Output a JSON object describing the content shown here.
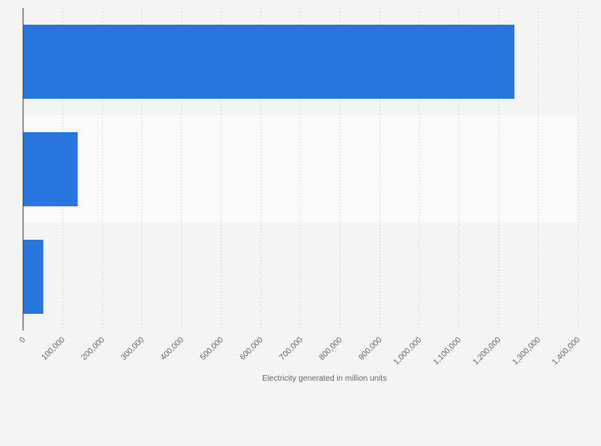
{
  "chart_data": {
    "type": "bar",
    "orientation": "horizontal",
    "categories": [
      "",
      "",
      ""
    ],
    "values": [
      1240000,
      138000,
      51000
    ],
    "title": "",
    "xlabel": "Electricity generated in million units",
    "ylabel": "",
    "xlim": [
      0,
      1400000
    ],
    "xticks": [
      0,
      100000,
      200000,
      300000,
      400000,
      500000,
      600000,
      700000,
      800000,
      900000,
      1000000,
      1100000,
      1200000,
      1300000,
      1400000
    ],
    "xtick_labels": [
      "0",
      "100,000",
      "200,000",
      "300,000",
      "400,000",
      "500,000",
      "600,000",
      "700,000",
      "800,000",
      "900,000",
      "1,000,000",
      "1,100,000",
      "1,200,000",
      "1,300,000",
      "1,400,000"
    ],
    "grid": true,
    "legend": "none",
    "colors": {
      "bar": "#2876dd",
      "band_alt": "#fafafa",
      "band": "#f4f4f4",
      "grid": "#dddddd",
      "axis": "#333333",
      "text": "#666666"
    }
  }
}
